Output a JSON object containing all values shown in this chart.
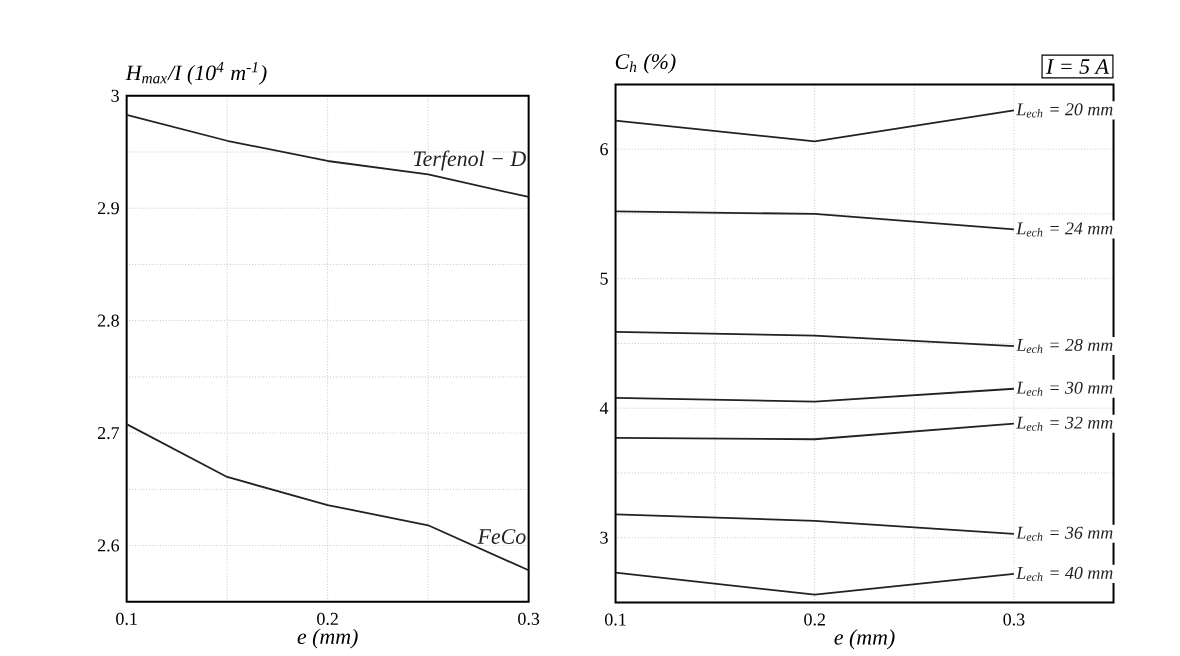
{
  "chart_data": [
    {
      "type": "line",
      "xlabel": "e (mm)",
      "ylabel": "H$_{max}$/I (10$^{4}$ m$^{-1}$)",
      "x": [
        0.1,
        0.15,
        0.2,
        0.25,
        0.3
      ],
      "series": [
        {
          "name": "Terfenol − D",
          "color": "#222222",
          "values": [
            2.983,
            2.96,
            2.942,
            2.93,
            2.91
          ]
        },
        {
          "name": "FeCo",
          "color": "#222222",
          "values": [
            2.708,
            2.661,
            2.636,
            2.618,
            2.578
          ]
        }
      ],
      "xlim": [
        0.1,
        0.3
      ],
      "ylim": [
        2.55,
        3.0
      ],
      "xticks": [
        0.1,
        {
          "value": 0.15,
          "label": null
        },
        0.2,
        {
          "value": 0.25,
          "label": null
        },
        0.3
      ],
      "yticks": [
        {
          "value": 2.55,
          "label": null
        },
        2.6,
        {
          "value": 2.65,
          "label": null
        },
        2.7,
        {
          "value": 2.75,
          "label": null
        },
        2.8,
        {
          "value": 2.85,
          "label": null
        },
        2.9,
        {
          "value": 2.95,
          "label": null
        },
        3
      ],
      "grid": true,
      "line_style": "solid"
    },
    {
      "type": "line",
      "xlabel": "e (mm)",
      "ylabel": "C$_{h}$ (%)",
      "annotations": [
        "I = 5 A"
      ],
      "x": [
        0.1,
        0.2,
        0.3
      ],
      "series": [
        {
          "name": "L$_{ech}$ = 20 mm",
          "color": "#222222",
          "values": [
            6.22,
            6.06,
            6.3
          ]
        },
        {
          "name": "L$_{ech}$ = 24 mm",
          "color": "#222222",
          "values": [
            5.52,
            5.5,
            5.38
          ]
        },
        {
          "name": "L$_{ech}$ = 28 mm",
          "color": "#222222",
          "values": [
            4.59,
            4.56,
            4.48
          ]
        },
        {
          "name": "L$_{ech}$ = 30 mm",
          "color": "#222222",
          "values": [
            4.08,
            4.05,
            4.15
          ]
        },
        {
          "name": "L$_{ech}$ = 32 mm",
          "color": "#222222",
          "values": [
            3.77,
            3.76,
            3.88
          ]
        },
        {
          "name": "L$_{ech}$ = 36 mm",
          "color": "#222222",
          "values": [
            3.18,
            3.13,
            3.03
          ]
        },
        {
          "name": "L$_{ech}$ = 40 mm",
          "color": "#222222",
          "values": [
            2.73,
            2.56,
            2.72
          ]
        }
      ],
      "xlim": [
        0.1,
        0.35
      ],
      "ylim": [
        2.5,
        6.5
      ],
      "xticks": [
        0.1,
        {
          "value": 0.15,
          "label": null
        },
        0.2,
        {
          "value": 0.25,
          "label": null
        },
        0.3,
        {
          "value": 0.35,
          "label": null
        }
      ],
      "yticks": [
        {
          "value": 2.5,
          "label": null
        },
        3,
        {
          "value": 3.5,
          "label": null
        },
        4,
        {
          "value": 4.5,
          "label": null
        },
        5,
        {
          "value": 5.5,
          "label": null
        },
        6,
        {
          "value": 6.5,
          "label": null
        }
      ],
      "grid": true,
      "line_style": "solid"
    }
  ]
}
